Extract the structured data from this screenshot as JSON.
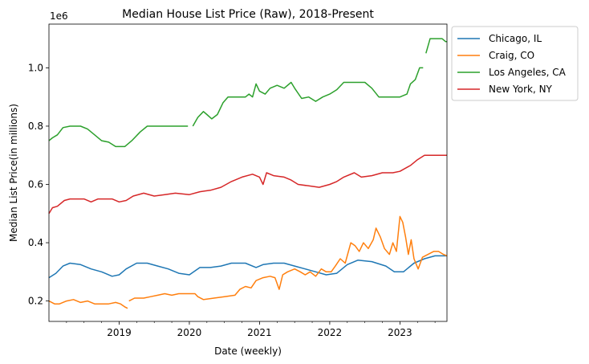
{
  "chart_data": {
    "type": "line",
    "title": "Median House List Price (Raw), 2018-Present",
    "xlabel": "Date (weekly)",
    "ylabel": "Median List Price(in millions)",
    "y_offset_label": "1e6",
    "xlim": [
      2018.0,
      2023.67
    ],
    "ylim": [
      0.13,
      1.15
    ],
    "x_ticks": [
      2019,
      2020,
      2021,
      2022,
      2023
    ],
    "x_tick_labels": [
      "2019",
      "2020",
      "2021",
      "2022",
      "2023"
    ],
    "y_ticks": [
      0.2,
      0.4,
      0.6,
      0.8,
      1.0
    ],
    "y_tick_labels": [
      "0.2",
      "0.4",
      "0.6",
      "0.8",
      "1.0"
    ],
    "grid": false,
    "legend_position": "outside-top-right",
    "series": [
      {
        "name": "Chicago, IL",
        "color": "#1f77b4",
        "points": [
          [
            2018.0,
            0.28
          ],
          [
            2018.1,
            0.295
          ],
          [
            2018.2,
            0.32
          ],
          [
            2018.3,
            0.33
          ],
          [
            2018.45,
            0.325
          ],
          [
            2018.6,
            0.31
          ],
          [
            2018.75,
            0.3
          ],
          [
            2018.9,
            0.285
          ],
          [
            2019.0,
            0.29
          ],
          [
            2019.1,
            0.31
          ],
          [
            2019.25,
            0.33
          ],
          [
            2019.4,
            0.33
          ],
          [
            2019.55,
            0.32
          ],
          [
            2019.7,
            0.31
          ],
          [
            2019.85,
            0.295
          ],
          [
            2020.0,
            0.29
          ],
          [
            2020.15,
            0.315
          ],
          [
            2020.3,
            0.315
          ],
          [
            2020.45,
            0.32
          ],
          [
            2020.6,
            0.33
          ],
          [
            2020.8,
            0.33
          ],
          [
            2020.95,
            0.315
          ],
          [
            2021.05,
            0.325
          ],
          [
            2021.2,
            0.33
          ],
          [
            2021.35,
            0.33
          ],
          [
            2021.5,
            0.32
          ],
          [
            2021.65,
            0.31
          ],
          [
            2021.8,
            0.3
          ],
          [
            2021.95,
            0.29
          ],
          [
            2022.1,
            0.295
          ],
          [
            2022.25,
            0.325
          ],
          [
            2022.4,
            0.34
          ],
          [
            2022.6,
            0.335
          ],
          [
            2022.8,
            0.32
          ],
          [
            2022.92,
            0.3
          ],
          [
            2023.05,
            0.3
          ],
          [
            2023.2,
            0.33
          ],
          [
            2023.35,
            0.345
          ],
          [
            2023.5,
            0.355
          ],
          [
            2023.67,
            0.355
          ]
        ]
      },
      {
        "name": "Craig, CO",
        "color": "#ff7f0e",
        "segments": [
          [
            [
              2018.0,
              0.2
            ],
            [
              2018.08,
              0.19
            ],
            [
              2018.15,
              0.19
            ],
            [
              2018.25,
              0.2
            ],
            [
              2018.35,
              0.205
            ],
            [
              2018.45,
              0.195
            ],
            [
              2018.55,
              0.2
            ],
            [
              2018.65,
              0.19
            ],
            [
              2018.75,
              0.19
            ],
            [
              2018.85,
              0.19
            ],
            [
              2018.95,
              0.195
            ],
            [
              2019.02,
              0.19
            ],
            [
              2019.08,
              0.18
            ],
            [
              2019.12,
              0.175
            ]
          ],
          [
            [
              2019.14,
              0.2
            ],
            [
              2019.22,
              0.21
            ],
            [
              2019.35,
              0.21
            ],
            [
              2019.45,
              0.215
            ],
            [
              2019.55,
              0.22
            ],
            [
              2019.65,
              0.225
            ],
            [
              2019.75,
              0.22
            ],
            [
              2019.85,
              0.225
            ],
            [
              2020.0,
              0.225
            ],
            [
              2020.08,
              0.225
            ],
            [
              2020.12,
              0.215
            ],
            [
              2020.2,
              0.205
            ],
            [
              2020.35,
              0.21
            ],
            [
              2020.5,
              0.215
            ],
            [
              2020.65,
              0.22
            ],
            [
              2020.72,
              0.24
            ],
            [
              2020.8,
              0.25
            ],
            [
              2020.88,
              0.245
            ],
            [
              2020.95,
              0.27
            ],
            [
              2021.05,
              0.28
            ],
            [
              2021.15,
              0.285
            ],
            [
              2021.22,
              0.28
            ],
            [
              2021.28,
              0.24
            ],
            [
              2021.33,
              0.29
            ],
            [
              2021.4,
              0.3
            ],
            [
              2021.5,
              0.31
            ],
            [
              2021.58,
              0.3
            ],
            [
              2021.65,
              0.29
            ],
            [
              2021.72,
              0.3
            ],
            [
              2021.8,
              0.285
            ],
            [
              2021.88,
              0.31
            ],
            [
              2021.95,
              0.3
            ],
            [
              2022.02,
              0.3
            ],
            [
              2022.08,
              0.32
            ],
            [
              2022.15,
              0.345
            ],
            [
              2022.22,
              0.33
            ],
            [
              2022.3,
              0.4
            ],
            [
              2022.36,
              0.39
            ],
            [
              2022.42,
              0.37
            ],
            [
              2022.48,
              0.4
            ],
            [
              2022.55,
              0.38
            ],
            [
              2022.62,
              0.41
            ],
            [
              2022.66,
              0.45
            ],
            [
              2022.72,
              0.42
            ],
            [
              2022.78,
              0.38
            ],
            [
              2022.85,
              0.36
            ],
            [
              2022.9,
              0.4
            ],
            [
              2022.95,
              0.37
            ],
            [
              2023.0,
              0.49
            ],
            [
              2023.04,
              0.47
            ],
            [
              2023.08,
              0.42
            ],
            [
              2023.12,
              0.36
            ],
            [
              2023.16,
              0.41
            ],
            [
              2023.2,
              0.345
            ],
            [
              2023.26,
              0.31
            ],
            [
              2023.32,
              0.35
            ],
            [
              2023.4,
              0.36
            ],
            [
              2023.48,
              0.37
            ],
            [
              2023.55,
              0.37
            ],
            [
              2023.62,
              0.36
            ],
            [
              2023.67,
              0.355
            ]
          ]
        ]
      },
      {
        "name": "Los Angeles, CA",
        "color": "#2ca02c",
        "segments": [
          [
            [
              2018.0,
              0.75
            ],
            [
              2018.05,
              0.76
            ],
            [
              2018.12,
              0.77
            ],
            [
              2018.2,
              0.795
            ],
            [
              2018.3,
              0.8
            ],
            [
              2018.45,
              0.8
            ],
            [
              2018.55,
              0.79
            ],
            [
              2018.65,
              0.77
            ],
            [
              2018.75,
              0.75
            ],
            [
              2018.85,
              0.745
            ],
            [
              2018.95,
              0.73
            ],
            [
              2019.08,
              0.73
            ],
            [
              2019.18,
              0.75
            ],
            [
              2019.3,
              0.78
            ],
            [
              2019.4,
              0.8
            ],
            [
              2019.6,
              0.8
            ],
            [
              2019.8,
              0.8
            ],
            [
              2019.98,
              0.8
            ]
          ],
          [
            [
              2020.05,
              0.8
            ],
            [
              2020.12,
              0.83
            ],
            [
              2020.2,
              0.85
            ],
            [
              2020.25,
              0.84
            ],
            [
              2020.32,
              0.825
            ],
            [
              2020.4,
              0.84
            ],
            [
              2020.48,
              0.88
            ],
            [
              2020.55,
              0.9
            ],
            [
              2020.7,
              0.9
            ],
            [
              2020.8,
              0.9
            ],
            [
              2020.85,
              0.91
            ],
            [
              2020.9,
              0.9
            ],
            [
              2020.95,
              0.945
            ],
            [
              2021.0,
              0.92
            ],
            [
              2021.08,
              0.91
            ],
            [
              2021.15,
              0.93
            ],
            [
              2021.25,
              0.94
            ],
            [
              2021.35,
              0.93
            ],
            [
              2021.45,
              0.95
            ],
            [
              2021.5,
              0.93
            ],
            [
              2021.6,
              0.895
            ],
            [
              2021.7,
              0.9
            ],
            [
              2021.8,
              0.885
            ],
            [
              2021.9,
              0.9
            ],
            [
              2022.0,
              0.91
            ],
            [
              2022.1,
              0.925
            ],
            [
              2022.2,
              0.95
            ],
            [
              2022.35,
              0.95
            ],
            [
              2022.5,
              0.95
            ],
            [
              2022.6,
              0.93
            ],
            [
              2022.7,
              0.9
            ],
            [
              2022.85,
              0.9
            ],
            [
              2023.0,
              0.9
            ],
            [
              2023.1,
              0.91
            ],
            [
              2023.15,
              0.945
            ],
            [
              2023.22,
              0.96
            ],
            [
              2023.28,
              1.0
            ],
            [
              2023.33,
              1.0
            ]
          ],
          [
            [
              2023.37,
              1.05
            ],
            [
              2023.43,
              1.1
            ],
            [
              2023.5,
              1.1
            ],
            [
              2023.55,
              1.1
            ],
            [
              2023.6,
              1.1
            ],
            [
              2023.65,
              1.09
            ],
            [
              2023.67,
              1.09
            ]
          ]
        ]
      },
      {
        "name": "New York, NY",
        "color": "#d62728",
        "points": [
          [
            2018.0,
            0.5
          ],
          [
            2018.05,
            0.52
          ],
          [
            2018.12,
            0.525
          ],
          [
            2018.22,
            0.545
          ],
          [
            2018.3,
            0.55
          ],
          [
            2018.5,
            0.55
          ],
          [
            2018.6,
            0.54
          ],
          [
            2018.7,
            0.55
          ],
          [
            2018.9,
            0.55
          ],
          [
            2019.0,
            0.54
          ],
          [
            2019.1,
            0.545
          ],
          [
            2019.2,
            0.56
          ],
          [
            2019.35,
            0.57
          ],
          [
            2019.5,
            0.56
          ],
          [
            2019.65,
            0.565
          ],
          [
            2019.8,
            0.57
          ],
          [
            2020.0,
            0.565
          ],
          [
            2020.15,
            0.575
          ],
          [
            2020.3,
            0.58
          ],
          [
            2020.45,
            0.59
          ],
          [
            2020.6,
            0.61
          ],
          [
            2020.75,
            0.625
          ],
          [
            2020.9,
            0.635
          ],
          [
            2021.0,
            0.625
          ],
          [
            2021.05,
            0.6
          ],
          [
            2021.1,
            0.64
          ],
          [
            2021.2,
            0.63
          ],
          [
            2021.35,
            0.625
          ],
          [
            2021.45,
            0.615
          ],
          [
            2021.55,
            0.6
          ],
          [
            2021.7,
            0.595
          ],
          [
            2021.85,
            0.59
          ],
          [
            2022.0,
            0.6
          ],
          [
            2022.1,
            0.61
          ],
          [
            2022.2,
            0.625
          ],
          [
            2022.35,
            0.64
          ],
          [
            2022.45,
            0.625
          ],
          [
            2022.6,
            0.63
          ],
          [
            2022.75,
            0.64
          ],
          [
            2022.9,
            0.64
          ],
          [
            2023.0,
            0.645
          ],
          [
            2023.15,
            0.665
          ],
          [
            2023.25,
            0.685
          ],
          [
            2023.35,
            0.7
          ],
          [
            2023.5,
            0.7
          ],
          [
            2023.67,
            0.7
          ]
        ]
      }
    ]
  }
}
